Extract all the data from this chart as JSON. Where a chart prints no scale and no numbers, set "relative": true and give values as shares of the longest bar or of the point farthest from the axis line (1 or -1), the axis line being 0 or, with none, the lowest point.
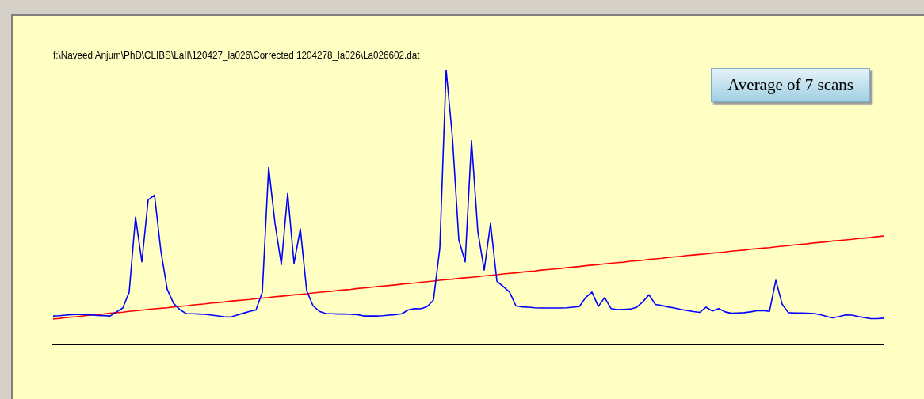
{
  "chart_data": {
    "type": "line",
    "title": "f:\\Naveed Anjum\\PhD\\CLIBS\\LaII\\120427_la026\\Corrected 1204278_la026\\La026602.dat",
    "annotations": [
      "Average of 7 scans"
    ],
    "relative": true,
    "grid": false,
    "legend": false,
    "marker": "none",
    "categories": [
      null,
      null,
      null,
      null,
      null,
      null,
      null,
      null,
      null,
      null,
      null,
      null,
      null,
      null,
      null,
      null,
      null,
      null,
      null,
      null,
      null,
      null,
      null,
      null,
      null,
      null,
      null,
      null,
      null,
      null,
      null,
      null,
      null,
      null,
      null,
      null,
      null,
      null,
      null,
      null,
      null,
      null,
      null,
      null,
      null,
      null,
      null,
      null,
      null,
      null,
      null,
      null,
      null,
      null,
      null,
      null,
      null,
      null,
      null,
      null,
      null,
      null,
      null,
      null,
      null,
      null,
      null,
      null,
      null,
      null,
      null,
      null,
      null,
      null,
      null,
      null,
      null,
      null,
      null,
      null,
      null,
      null,
      null,
      null,
      null,
      null,
      null,
      null,
      null,
      null,
      null,
      null,
      null,
      null,
      null,
      null,
      null,
      null,
      null,
      null,
      null,
      null,
      null,
      null,
      null,
      null,
      null,
      null,
      null,
      null,
      null,
      null,
      null,
      null,
      null,
      null,
      null,
      null,
      null,
      null,
      null,
      null,
      null,
      null,
      null,
      null,
      null,
      null,
      null,
      null,
      null,
      null
    ],
    "series": [
      {
        "color": "#0000ff",
        "values": [
          0.103,
          0.104,
          0.106,
          0.108,
          0.109,
          0.108,
          0.107,
          0.105,
          0.104,
          0.103,
          0.118,
          0.132,
          0.19,
          0.463,
          0.3,
          0.526,
          0.543,
          0.34,
          0.2,
          0.149,
          0.126,
          0.112,
          0.111,
          0.11,
          0.109,
          0.106,
          0.103,
          0.1,
          0.099,
          0.106,
          0.113,
          0.12,
          0.125,
          0.19,
          0.644,
          0.44,
          0.29,
          0.549,
          0.295,
          0.42,
          0.195,
          0.14,
          0.12,
          0.112,
          0.111,
          0.11,
          0.11,
          0.109,
          0.108,
          0.103,
          0.103,
          0.103,
          0.104,
          0.106,
          0.108,
          0.111,
          0.125,
          0.13,
          0.129,
          0.137,
          0.161,
          0.35,
          1,
          0.75,
          0.38,
          0.3,
          0.741,
          0.41,
          0.27,
          0.44,
          0.23,
          0.21,
          0.19,
          0.14,
          0.136,
          0.135,
          0.133,
          0.132,
          0.132,
          0.132,
          0.132,
          0.133,
          0.135,
          0.137,
          0.17,
          0.19,
          0.138,
          0.17,
          0.13,
          0.126,
          0.127,
          0.128,
          0.134,
          0.154,
          0.18,
          0.145,
          0.141,
          0.136,
          0.132,
          0.127,
          0.123,
          0.119,
          0.116,
          0.135,
          0.121,
          0.13,
          0.118,
          0.113,
          0.114,
          0.115,
          0.118,
          0.122,
          0.123,
          0.12,
          0.233,
          0.146,
          0.115,
          0.114,
          0.114,
          0.113,
          0.112,
          0.108,
          0.101,
          0.096,
          0.101,
          0.107,
          0.106,
          0.101,
          0.097,
          0.093,
          0.093,
          0.095
        ]
      },
      {
        "color": "#ff0000",
        "values": [
          0.092,
          0.094,
          0.097,
          0.099,
          0.101,
          0.104,
          0.106,
          0.108,
          0.11,
          0.113,
          0.115,
          0.117,
          0.12,
          0.122,
          0.124,
          0.127,
          0.129,
          0.131,
          0.133,
          0.136,
          0.138,
          0.14,
          0.143,
          0.145,
          0.147,
          0.15,
          0.152,
          0.154,
          0.157,
          0.159,
          0.161,
          0.163,
          0.166,
          0.168,
          0.17,
          0.173,
          0.175,
          0.177,
          0.18,
          0.182,
          0.184,
          0.187,
          0.189,
          0.191,
          0.193,
          0.196,
          0.198,
          0.2,
          0.203,
          0.205,
          0.207,
          0.21,
          0.212,
          0.214,
          0.216,
          0.219,
          0.221,
          0.223,
          0.226,
          0.228,
          0.23,
          0.233,
          0.235,
          0.237,
          0.24,
          0.242,
          0.244,
          0.246,
          0.249,
          0.251,
          0.253,
          0.256,
          0.258,
          0.26,
          0.263,
          0.265,
          0.267,
          0.27,
          0.272,
          0.274,
          0.276,
          0.279,
          0.281,
          0.283,
          0.286,
          0.288,
          0.29,
          0.293,
          0.295,
          0.297,
          0.299,
          0.302,
          0.304,
          0.306,
          0.309,
          0.311,
          0.313,
          0.316,
          0.318,
          0.32,
          0.323,
          0.325,
          0.327,
          0.329,
          0.332,
          0.334,
          0.336,
          0.339,
          0.341,
          0.343,
          0.346,
          0.348,
          0.35,
          0.352,
          0.355,
          0.357,
          0.359,
          0.362,
          0.364,
          0.366,
          0.369,
          0.371,
          0.373,
          0.376,
          0.378,
          0.38,
          0.382,
          0.385,
          0.387,
          0.389,
          0.392,
          0.394
        ]
      }
    ]
  }
}
